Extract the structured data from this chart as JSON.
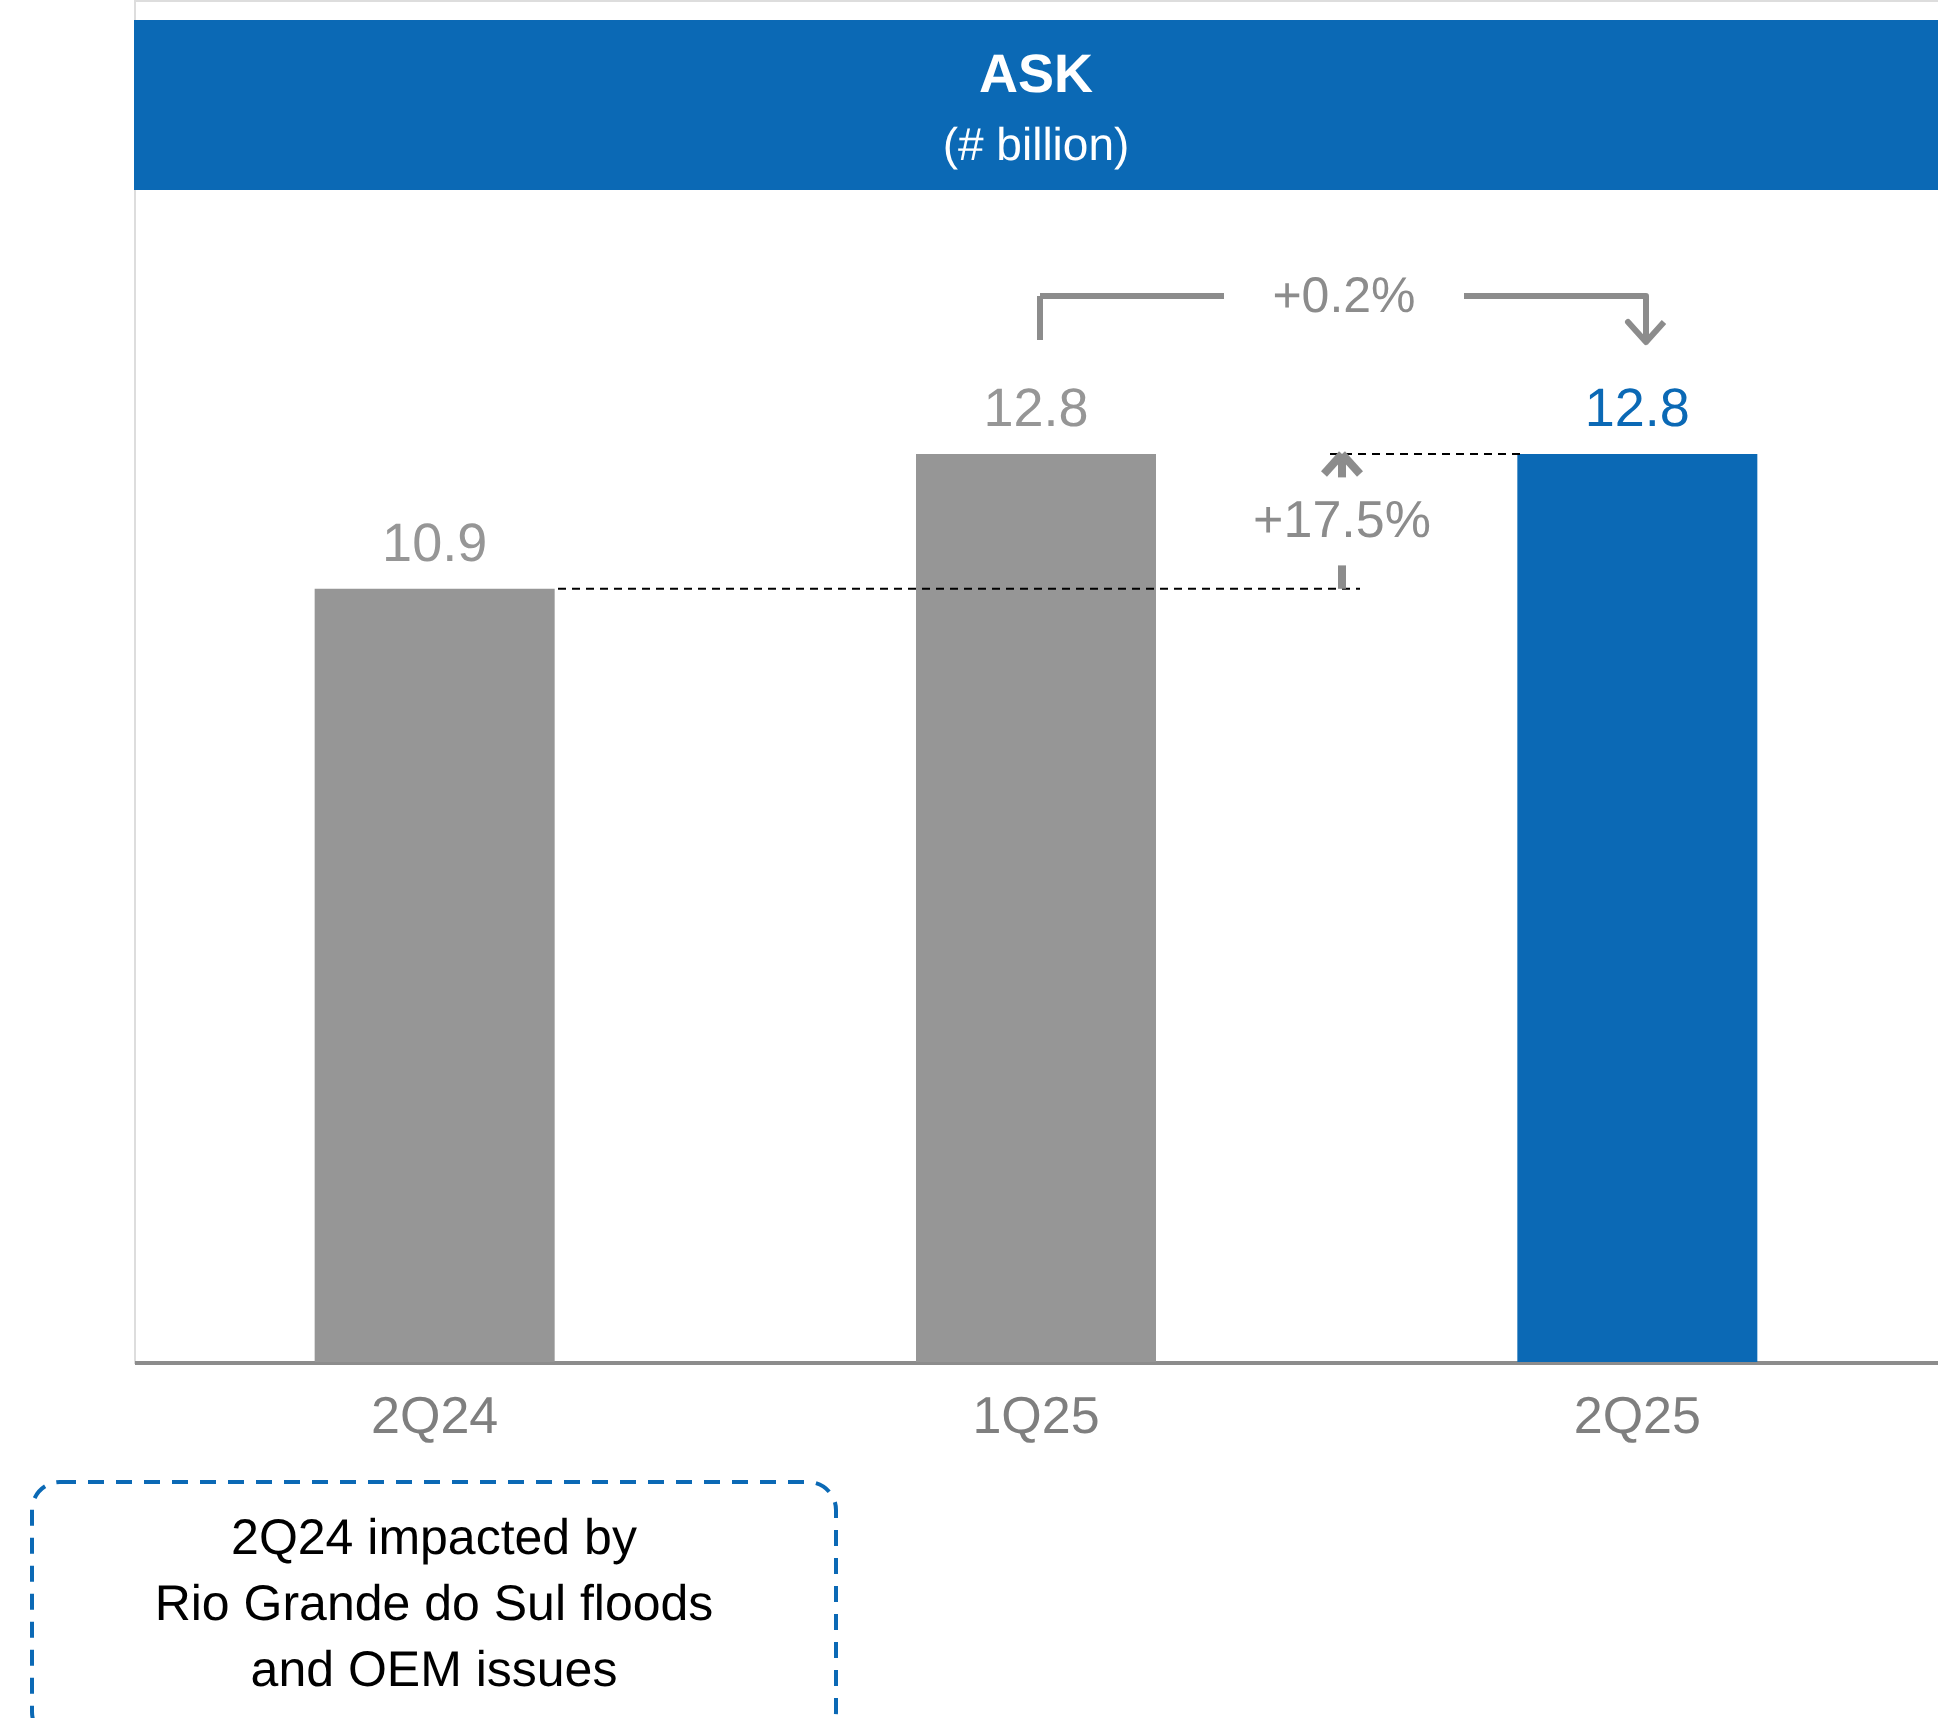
{
  "chart_data": {
    "type": "bar",
    "title": "ASK",
    "subtitle": "(# billion)",
    "categories": [
      "2Q24",
      "1Q25",
      "2Q25"
    ],
    "values": [
      10.9,
      12.8,
      12.8
    ],
    "colors": [
      "#969696",
      "#969696",
      "#0b69b5"
    ],
    "data_labels": true,
    "ref_lines": [
      {
        "axis": "y",
        "value": 10.9,
        "color": "#000000",
        "line_style": "dashed"
      },
      {
        "axis": "y",
        "value": 12.8,
        "color": "#000000",
        "line_style": "dashed"
      }
    ],
    "annotations": [
      "+0.2%",
      "+17.5%",
      "2Q24 impacted by\nRio Grande do Sul floods\nand OEM issues"
    ]
  }
}
